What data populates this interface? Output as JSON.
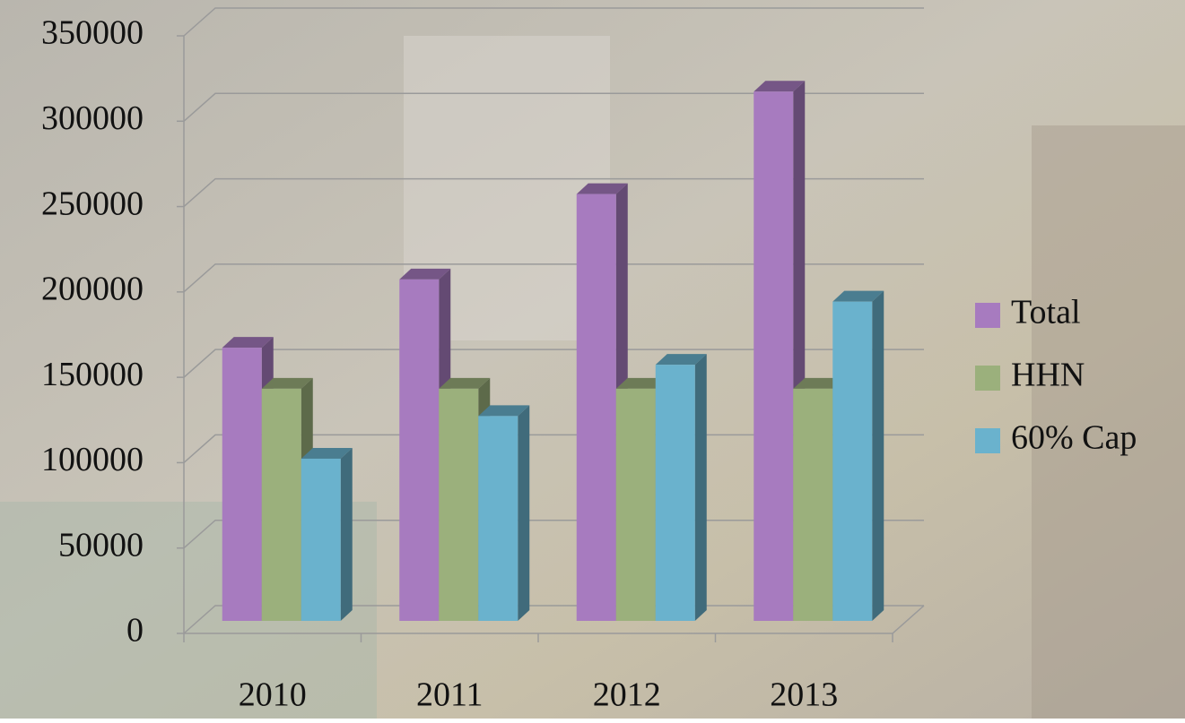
{
  "chart_data": {
    "type": "bar3d",
    "categories": [
      "2010",
      "2011",
      "2012",
      "2013"
    ],
    "series": [
      {
        "name": "Total",
        "color": "#a77bbf",
        "values": [
          160000,
          200000,
          250000,
          310000
        ]
      },
      {
        "name": "HHN",
        "color": "#9bb07c",
        "values": [
          136000,
          136000,
          136000,
          136000
        ]
      },
      {
        "name": "60% Cap",
        "color": "#6ab2cd",
        "values": [
          95000,
          120000,
          150000,
          187000
        ]
      }
    ],
    "ylim": [
      0,
      350000
    ],
    "yticks": [
      0,
      50000,
      100000,
      150000,
      200000,
      250000,
      300000,
      350000
    ],
    "grid": true,
    "legend": "right"
  }
}
